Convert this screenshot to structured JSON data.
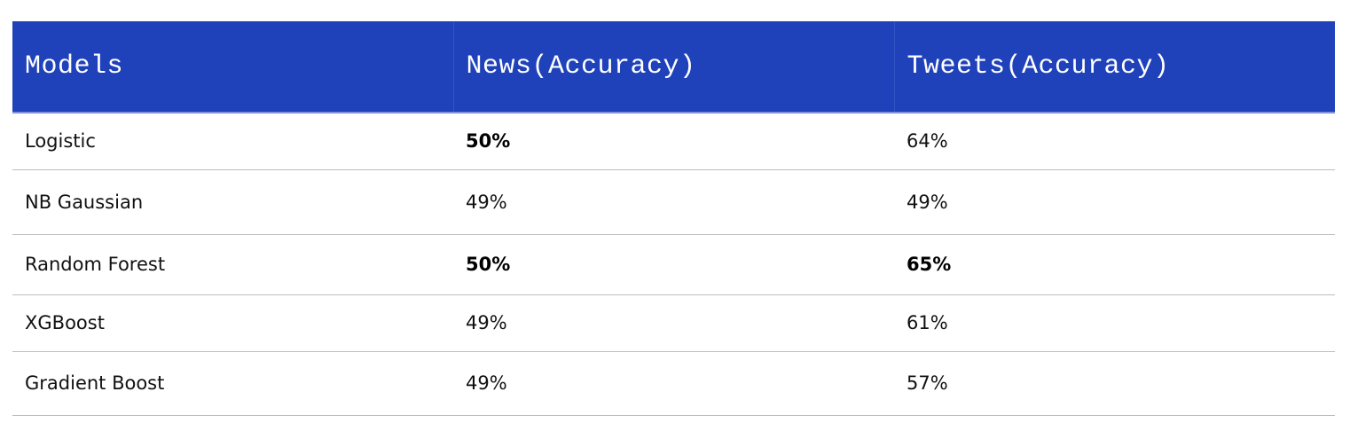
{
  "table": {
    "headers": [
      "Models",
      "News(Accuracy)",
      "Tweets(Accuracy)"
    ],
    "rows": [
      {
        "model": "Logistic",
        "news": "50%",
        "tweets": "64%",
        "news_bold": true,
        "tweets_bold": false
      },
      {
        "model": "NB Gaussian",
        "news": "49%",
        "tweets": "49%",
        "news_bold": false,
        "tweets_bold": false
      },
      {
        "model": "Random Forest",
        "news": "50%",
        "tweets": "65%",
        "news_bold": true,
        "tweets_bold": true
      },
      {
        "model": "XGBoost",
        "news": "49%",
        "tweets": "61%",
        "news_bold": false,
        "tweets_bold": false
      },
      {
        "model": "Gradient Boost",
        "news": "49%",
        "tweets": "57%",
        "news_bold": false,
        "tweets_bold": false
      }
    ]
  },
  "colors": {
    "header_background": "#1f42ba",
    "header_text": "#ffffff",
    "row_divider": "#bdbdbd"
  }
}
